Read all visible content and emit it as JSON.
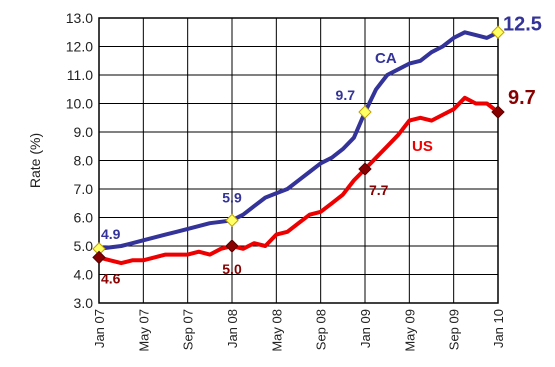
{
  "chart_data": {
    "type": "line",
    "ylabel": "Rate (%)",
    "ylim": [
      3.0,
      13.0
    ],
    "y_ticks": [
      "3.0",
      "4.0",
      "5.0",
      "6.0",
      "7.0",
      "8.0",
      "9.0",
      "10.0",
      "11.0",
      "12.0",
      "13.0"
    ],
    "x_ticks": [
      "Jan 07",
      "May 07",
      "Sep 07",
      "Jan 08",
      "May 08",
      "Sep 08",
      "Jan 09",
      "May 09",
      "Sep 09",
      "Jan 10"
    ],
    "grid": true,
    "series": [
      {
        "name": "CA",
        "color": "#333399",
        "marker_color": "#ffff66",
        "x": [
          "2007-01",
          "2007-02",
          "2007-03",
          "2007-04",
          "2007-05",
          "2007-06",
          "2007-07",
          "2007-08",
          "2007-09",
          "2007-10",
          "2007-11",
          "2007-12",
          "2008-01",
          "2008-02",
          "2008-03",
          "2008-04",
          "2008-05",
          "2008-06",
          "2008-07",
          "2008-08",
          "2008-09",
          "2008-10",
          "2008-11",
          "2008-12",
          "2009-01",
          "2009-02",
          "2009-03",
          "2009-04",
          "2009-05",
          "2009-06",
          "2009-07",
          "2009-08",
          "2009-09",
          "2009-10",
          "2009-11",
          "2009-12",
          "2010-01"
        ],
        "values": [
          4.9,
          4.95,
          5.0,
          5.1,
          5.2,
          5.3,
          5.4,
          5.5,
          5.6,
          5.7,
          5.8,
          5.85,
          5.9,
          6.1,
          6.4,
          6.7,
          6.85,
          7.0,
          7.3,
          7.6,
          7.9,
          8.1,
          8.4,
          8.8,
          9.7,
          10.5,
          11.0,
          11.2,
          11.4,
          11.5,
          11.8,
          12.0,
          12.3,
          12.5,
          12.4,
          12.3,
          12.5
        ]
      },
      {
        "name": "US",
        "color": "#ee0000",
        "marker_color": "#880000",
        "x": [
          "2007-01",
          "2007-02",
          "2007-03",
          "2007-04",
          "2007-05",
          "2007-06",
          "2007-07",
          "2007-08",
          "2007-09",
          "2007-10",
          "2007-11",
          "2007-12",
          "2008-01",
          "2008-02",
          "2008-03",
          "2008-04",
          "2008-05",
          "2008-06",
          "2008-07",
          "2008-08",
          "2008-09",
          "2008-10",
          "2008-11",
          "2008-12",
          "2009-01",
          "2009-02",
          "2009-03",
          "2009-04",
          "2009-05",
          "2009-06",
          "2009-07",
          "2009-08",
          "2009-09",
          "2009-10",
          "2009-11",
          "2009-12",
          "2010-01"
        ],
        "values": [
          4.6,
          4.5,
          4.4,
          4.5,
          4.5,
          4.6,
          4.7,
          4.7,
          4.7,
          4.8,
          4.7,
          4.9,
          5.0,
          4.9,
          5.1,
          5.0,
          5.4,
          5.5,
          5.8,
          6.1,
          6.2,
          6.5,
          6.8,
          7.3,
          7.7,
          8.1,
          8.5,
          8.9,
          9.4,
          9.5,
          9.4,
          9.6,
          9.8,
          10.2,
          10.0,
          10.0,
          9.7
        ]
      }
    ],
    "annotations": [
      {
        "id": "ca_jan07",
        "series": "CA",
        "x": "2007-01",
        "text": "4.9"
      },
      {
        "id": "ca_jan08",
        "series": "CA",
        "x": "2008-01",
        "text": "5.9"
      },
      {
        "id": "ca_jan09",
        "series": "CA",
        "x": "2009-01",
        "text": "9.7"
      },
      {
        "id": "ca_jan10",
        "series": "CA",
        "x": "2010-01",
        "text": "12.5"
      },
      {
        "id": "us_jan07",
        "series": "US",
        "x": "2007-01",
        "text": "4.6"
      },
      {
        "id": "us_jan08",
        "series": "US",
        "x": "2008-01",
        "text": "5.0"
      },
      {
        "id": "us_jan09",
        "series": "US",
        "x": "2009-01",
        "text": "7.7"
      },
      {
        "id": "us_jan10",
        "series": "US",
        "x": "2010-01",
        "text": "9.7"
      }
    ]
  }
}
